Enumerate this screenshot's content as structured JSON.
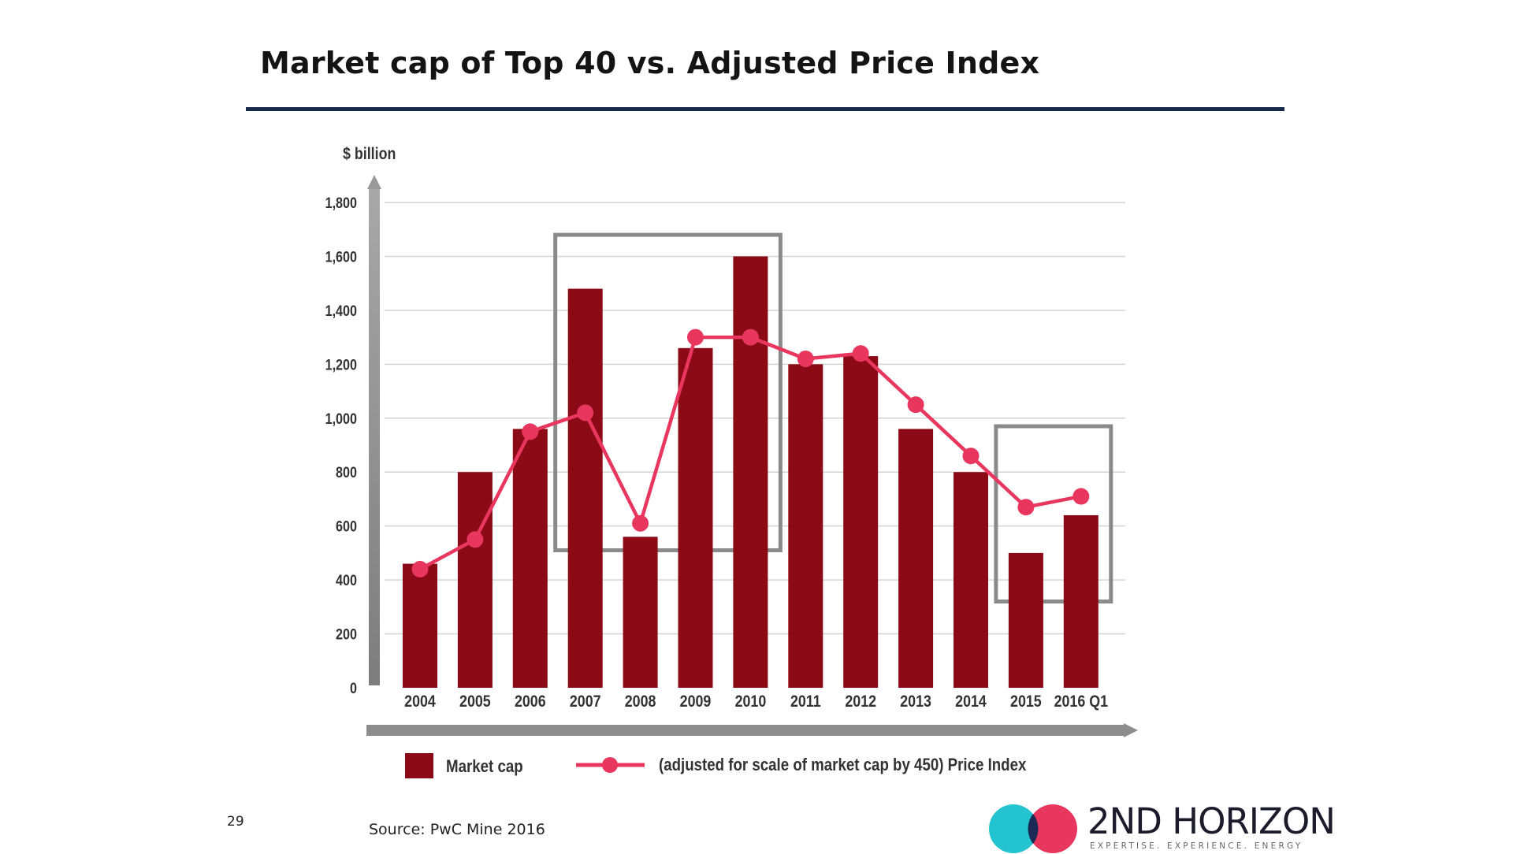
{
  "slide": {
    "title": "Market cap of Top 40 vs. Adjusted Price Index",
    "page_number": "29",
    "source": "Source: PwC Mine 2016"
  },
  "logo": {
    "name": "2ND HORIZON",
    "tagline": "EXPERTISE. EXPERIENCE. ENERGY"
  },
  "colors": {
    "bar": "#8b0a16",
    "line": "#e8365e",
    "axis": "#8a8a8a",
    "highlight_box": "#8a8a8a",
    "title_rule": "#172a4a"
  },
  "chart_data": {
    "type": "bar",
    "ylabel": "$ billion",
    "ylim": [
      0,
      1800
    ],
    "yticks": [
      "0",
      "200",
      "400",
      "600",
      "800",
      "1,000",
      "1,200",
      "1,400",
      "1,600",
      "1,800"
    ],
    "grid": true,
    "categories": [
      "2004",
      "2005",
      "2006",
      "2007",
      "2008",
      "2009",
      "2010",
      "2011",
      "2012",
      "2013",
      "2014",
      "2015",
      "2016 Q1"
    ],
    "series": [
      {
        "name": "Market cap",
        "type": "bar",
        "values": [
          460,
          800,
          960,
          1480,
          560,
          1260,
          1600,
          1200,
          1230,
          960,
          800,
          500,
          640
        ]
      },
      {
        "name": "(adjusted for scale of market cap by 450) Price Index",
        "type": "line",
        "values": [
          440,
          550,
          950,
          1020,
          610,
          1300,
          1300,
          1220,
          1240,
          1050,
          860,
          670,
          710
        ]
      }
    ],
    "legend_position": "bottom",
    "annotations": [
      {
        "type": "highlight-box",
        "from": "2007",
        "to": "2010",
        "y_range": [
          510,
          1680
        ]
      },
      {
        "type": "highlight-box",
        "from": "2015",
        "to": "2016 Q1",
        "y_range": [
          320,
          970
        ]
      }
    ]
  }
}
